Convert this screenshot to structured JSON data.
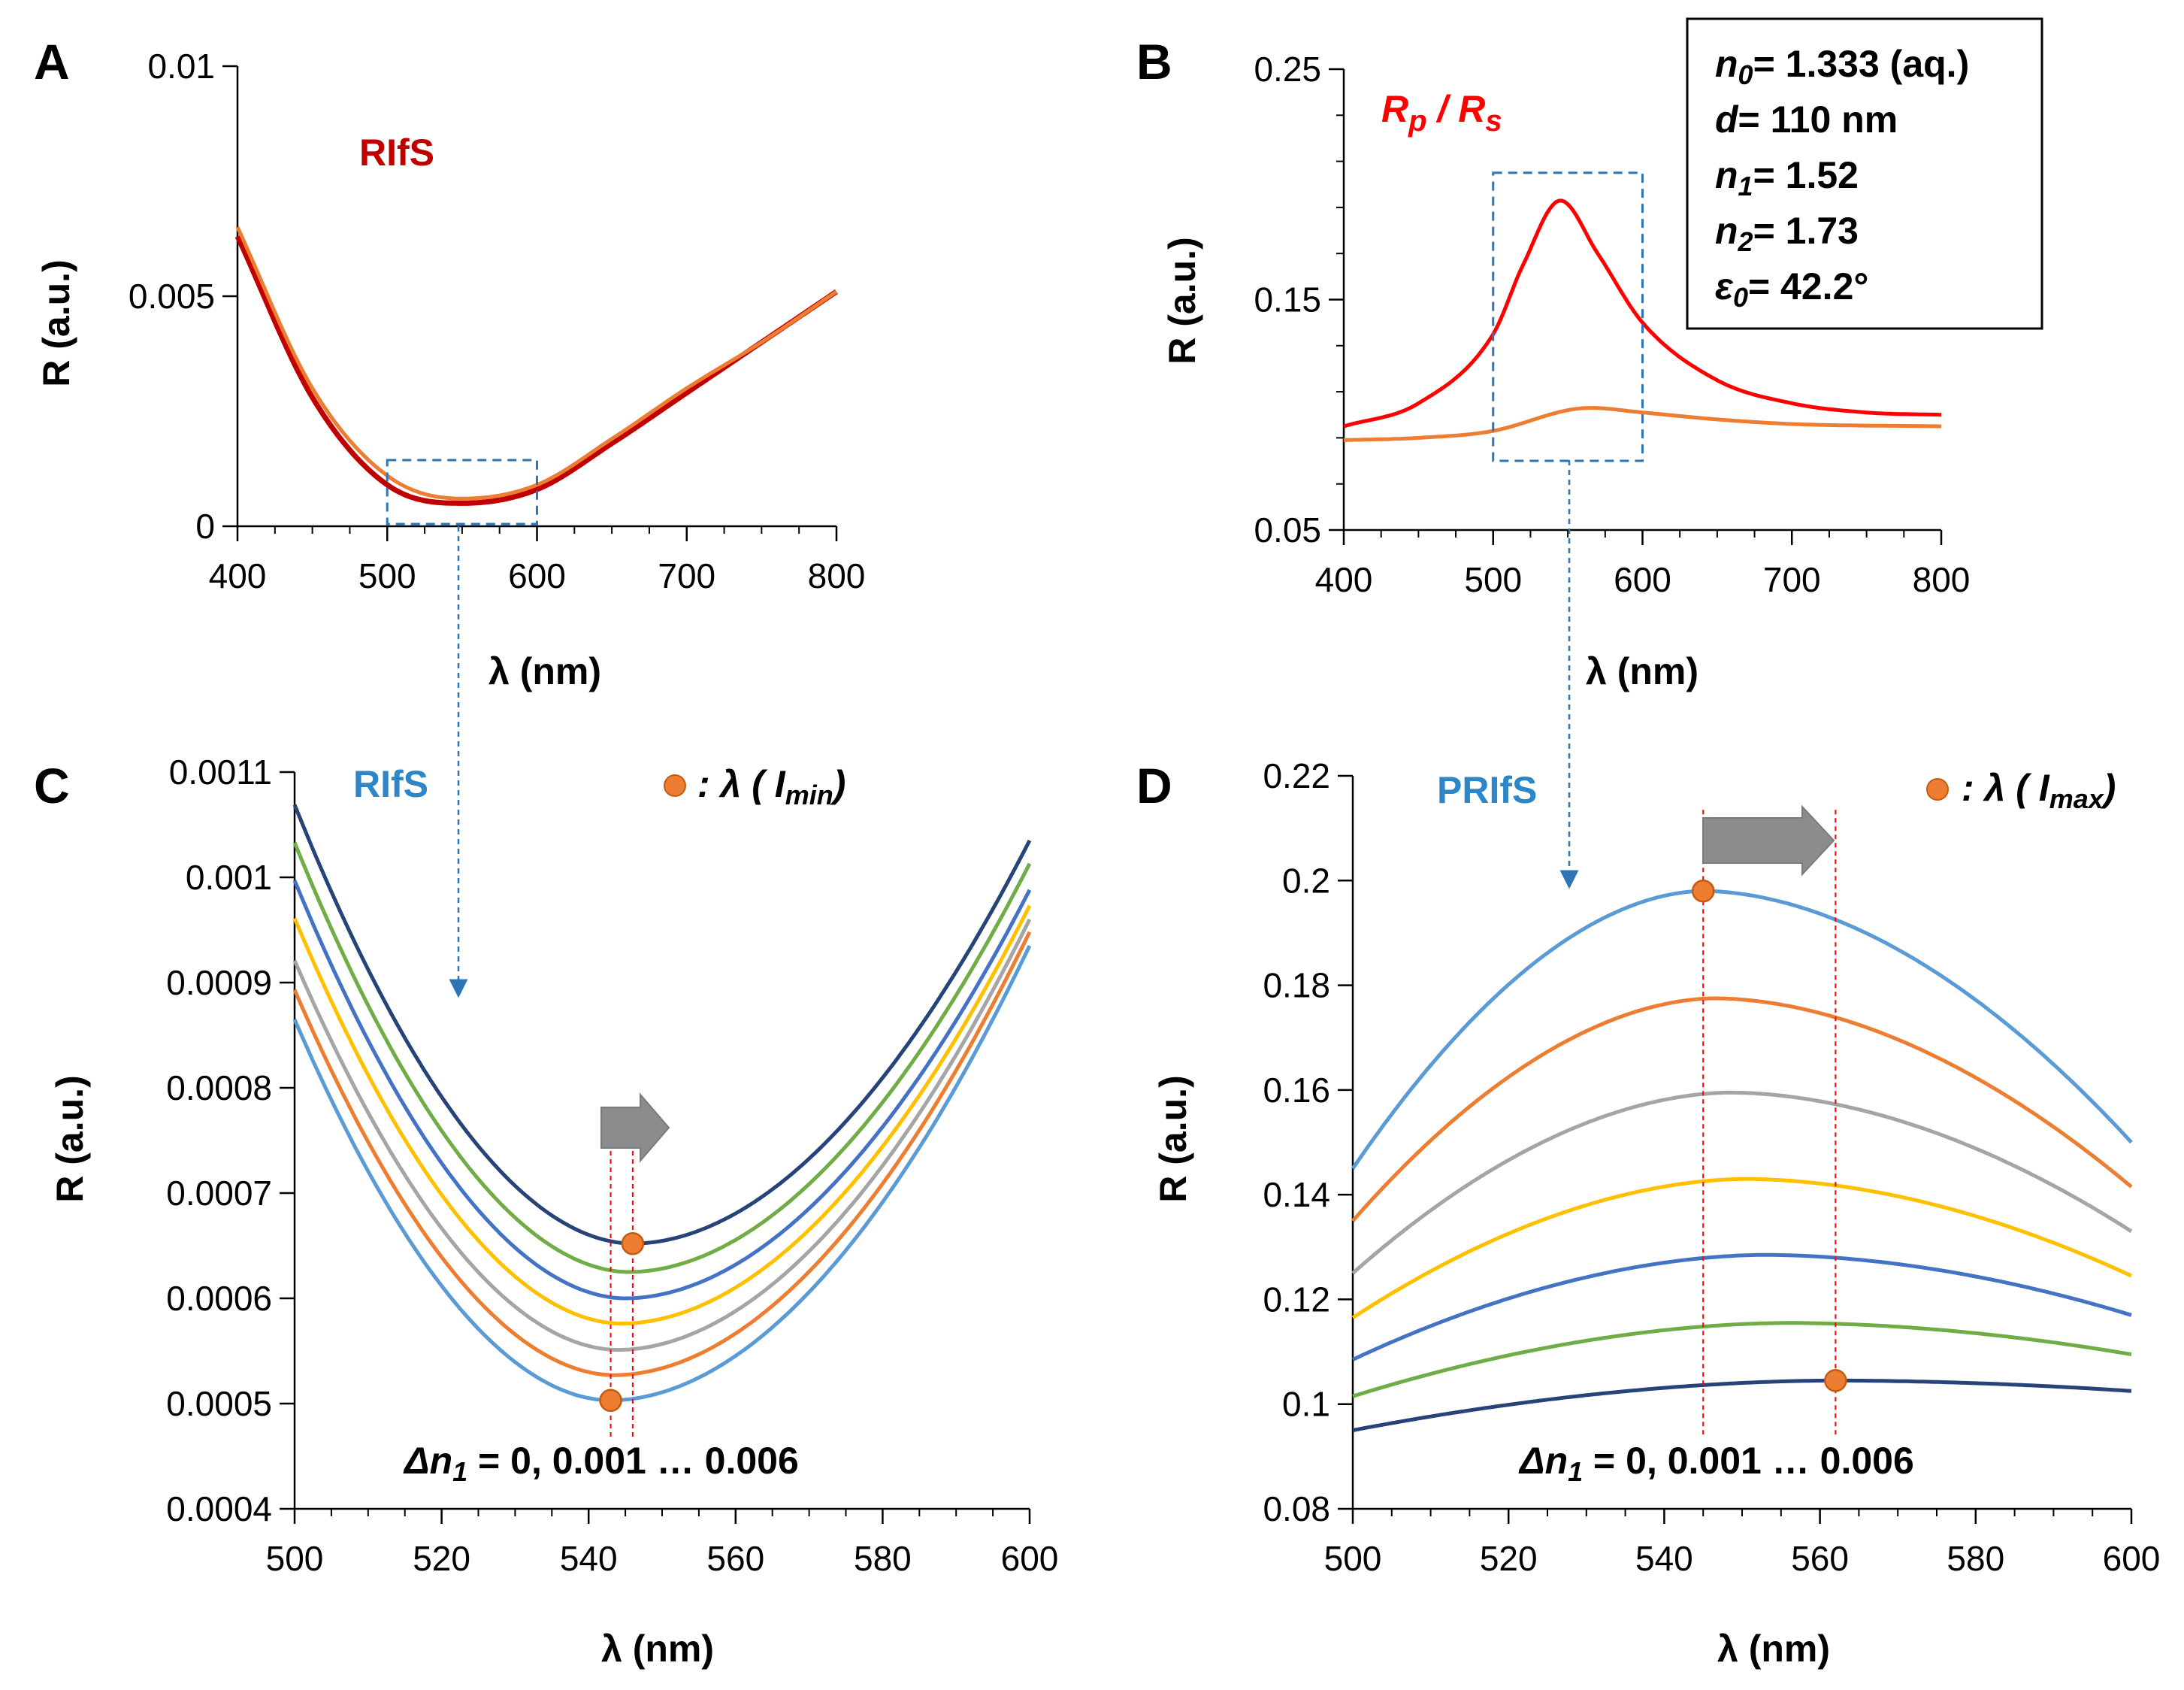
{
  "figure": {
    "panels": {
      "A": {
        "letter": "A",
        "label": "RIfS",
        "label_color": "#c00000"
      },
      "B": {
        "letter": "B",
        "label_Rp": "R",
        "label_p": "p",
        "label_slash": " / ",
        "label_Rs": "R",
        "label_s": "s",
        "label_color": "#ff0000"
      },
      "C": {
        "letter": "C",
        "label": "RIfS",
        "label_color": "#2e86c8",
        "legend_prefix": ": λ ( ",
        "legend_I": "I",
        "legend_sub": "min",
        "legend_suffix": ")"
      },
      "D": {
        "letter": "D",
        "label": "PRIfS",
        "label_color": "#2e86c8",
        "legend_prefix": ": λ ( ",
        "legend_I": "I",
        "legend_sub": "max",
        "legend_suffix": ")"
      }
    },
    "params_box": {
      "lines": [
        {
          "sym": "n",
          "sub": "0",
          "rest": "= 1.333 (aq.)"
        },
        {
          "sym": "d",
          "sub": "",
          "rest": "= 110 nm"
        },
        {
          "sym": "n",
          "sub": "1",
          "rest": "= 1.52"
        },
        {
          "sym": "n",
          "sub": "2",
          "rest": "= 1.73"
        },
        {
          "sym": "ε",
          "sub": "0",
          "rest": "= 42.2°"
        }
      ]
    },
    "delta_note": {
      "delta": "Δn",
      "sub": "1",
      "rest": " = 0, 0.001 … 0.006"
    },
    "colors": {
      "A_red": "#c00000",
      "A_orange": "#ed7d31",
      "B_red": "#ff0000",
      "B_orange": "#ed7d31",
      "dash_blue": "#2e75b6",
      "marker": "#ed7d31",
      "marker_edge": "#c55a11",
      "vline": "#ff0000",
      "arrow_fill": "#8c8c8c"
    }
  },
  "chart_data": [
    {
      "id": "A",
      "type": "line",
      "title": "RIfS",
      "xlabel": "λ (nm)",
      "ylabel": "R (a.u.)",
      "xlim": [
        400,
        800
      ],
      "ylim": [
        0,
        0.01
      ],
      "xticks": [
        "400",
        "500",
        "600",
        "700",
        "800"
      ],
      "yticks": [
        "0",
        "0.005",
        "0.01"
      ],
      "zoom_box_x": [
        500,
        600
      ],
      "series": [
        {
          "name": "RIfS (dark red)",
          "color": "#c00000",
          "x": [
            400,
            450,
            500,
            550,
            600,
            650,
            700,
            750,
            800
          ],
          "values": [
            0.0063,
            0.0028,
            0.0009,
            0.0005,
            0.0008,
            0.0018,
            0.0029,
            0.004,
            0.0051
          ]
        },
        {
          "name": "RIfS (orange)",
          "color": "#ed7d31",
          "x": [
            400,
            450,
            500,
            550,
            600,
            650,
            700,
            750,
            800
          ],
          "values": [
            0.0065,
            0.003,
            0.0011,
            0.0006,
            0.0009,
            0.0019,
            0.003,
            0.004,
            0.0051
          ]
        }
      ]
    },
    {
      "id": "B",
      "type": "line",
      "title": "Rp / Rs",
      "xlabel": "λ (nm)",
      "ylabel": "R (a.u.)",
      "xlim": [
        400,
        800
      ],
      "ylim": [
        0.05,
        0.25
      ],
      "xticks": [
        "400",
        "500",
        "600",
        "700",
        "800"
      ],
      "yticks": [
        "0.05",
        "0.15",
        "0.25"
      ],
      "zoom_box_x": [
        500,
        600
      ],
      "zoom_box_y": [
        0.08,
        0.205
      ],
      "series": [
        {
          "name": "Rp",
          "color": "#ff0000",
          "x": [
            400,
            450,
            500,
            520,
            545,
            570,
            600,
            650,
            700,
            750,
            800
          ],
          "values": [
            0.095,
            0.105,
            0.135,
            0.165,
            0.193,
            0.17,
            0.14,
            0.115,
            0.105,
            0.101,
            0.1
          ]
        },
        {
          "name": "Rs",
          "color": "#ed7d31",
          "x": [
            400,
            450,
            500,
            550,
            565,
            600,
            650,
            700,
            800
          ],
          "values": [
            0.089,
            0.09,
            0.093,
            0.102,
            0.103,
            0.101,
            0.098,
            0.096,
            0.095
          ]
        }
      ]
    },
    {
      "id": "C",
      "type": "line",
      "title": "RIfS",
      "xlabel": "λ (nm)",
      "ylabel": "R (a.u.)",
      "xlim": [
        500,
        600
      ],
      "ylim": [
        0.0004,
        0.0011
      ],
      "xticks": [
        "500",
        "520",
        "540",
        "560",
        "580",
        "600"
      ],
      "yticks": [
        "0.0004",
        "0.0005",
        "0.0006",
        "0.0007",
        "0.0008",
        "0.0009",
        "0.001",
        "0.0011"
      ],
      "series": [
        {
          "name": "Δn1 = 0",
          "color": "#5b9bd5",
          "min_x": 543.0,
          "min_y": 0.000503,
          "left": 0.000865,
          "right": 0.000935
        },
        {
          "name": "Δn1 = 0.001",
          "color": "#ed7d31",
          "min_x": 543.5,
          "min_y": 0.000527,
          "left": 0.000893,
          "right": 0.000948
        },
        {
          "name": "Δn1 = 0.002",
          "color": "#a5a5a5",
          "min_x": 544.0,
          "min_y": 0.000551,
          "left": 0.000921,
          "right": 0.00096
        },
        {
          "name": "Δn1 = 0.003",
          "color": "#ffc000",
          "min_x": 544.5,
          "min_y": 0.000576,
          "left": 0.000961,
          "right": 0.000973
        },
        {
          "name": "Δn1 = 0.004",
          "color": "#4472c4",
          "min_x": 545.0,
          "min_y": 0.0006,
          "left": 0.000997,
          "right": 0.000988
        },
        {
          "name": "Δn1 = 0.005",
          "color": "#70ad47",
          "min_x": 545.5,
          "min_y": 0.000625,
          "left": 0.001033,
          "right": 0.001013
        },
        {
          "name": "Δn1 = 0.006",
          "color": "#264478",
          "min_x": 546.0,
          "min_y": 0.000652,
          "left": 0.001069,
          "right": 0.001035
        }
      ],
      "markers": [
        {
          "x": 543.0,
          "y": 0.000503
        },
        {
          "x": 546.0,
          "y": 0.000652
        }
      ],
      "vlines_x": [
        543.0,
        546.0
      ]
    },
    {
      "id": "D",
      "type": "line",
      "title": "PRIfS",
      "xlabel": "λ (nm)",
      "ylabel": "R (a.u.)",
      "xlim": [
        500,
        600
      ],
      "ylim": [
        0.08,
        0.22
      ],
      "xticks": [
        "500",
        "520",
        "540",
        "560",
        "580",
        "600"
      ],
      "yticks": [
        "0.08",
        "0.1",
        "0.12",
        "0.14",
        "0.16",
        "0.18",
        "0.2",
        "0.22"
      ],
      "series": [
        {
          "name": "Δn1 = 0",
          "color": "#5b9bd5",
          "peak_x": 545.0,
          "peak_y": 0.198,
          "left": 0.145,
          "right": 0.15
        },
        {
          "name": "Δn1 = 0.001",
          "color": "#ed7d31",
          "peak_x": 546.5,
          "peak_y": 0.1775,
          "left": 0.135,
          "right": 0.1415
        },
        {
          "name": "Δn1 = 0.002",
          "color": "#a5a5a5",
          "peak_x": 548.5,
          "peak_y": 0.1595,
          "left": 0.125,
          "right": 0.133
        },
        {
          "name": "Δn1 = 0.003",
          "color": "#ffc000",
          "peak_x": 550.5,
          "peak_y": 0.143,
          "left": 0.1165,
          "right": 0.1245
        },
        {
          "name": "Δn1 = 0.004",
          "color": "#4472c4",
          "peak_x": 553.0,
          "peak_y": 0.1285,
          "left": 0.1085,
          "right": 0.117
        },
        {
          "name": "Δn1 = 0.005",
          "color": "#70ad47",
          "peak_x": 556.0,
          "peak_y": 0.1155,
          "left": 0.1015,
          "right": 0.1095
        },
        {
          "name": "Δn1 = 0.006",
          "color": "#264478",
          "peak_x": 562.0,
          "peak_y": 0.1045,
          "left": 0.095,
          "right": 0.1025
        }
      ],
      "markers": [
        {
          "x": 545.0,
          "y": 0.198
        },
        {
          "x": 562.0,
          "y": 0.1045
        }
      ],
      "vlines_x": [
        545.0,
        562.0
      ]
    }
  ]
}
